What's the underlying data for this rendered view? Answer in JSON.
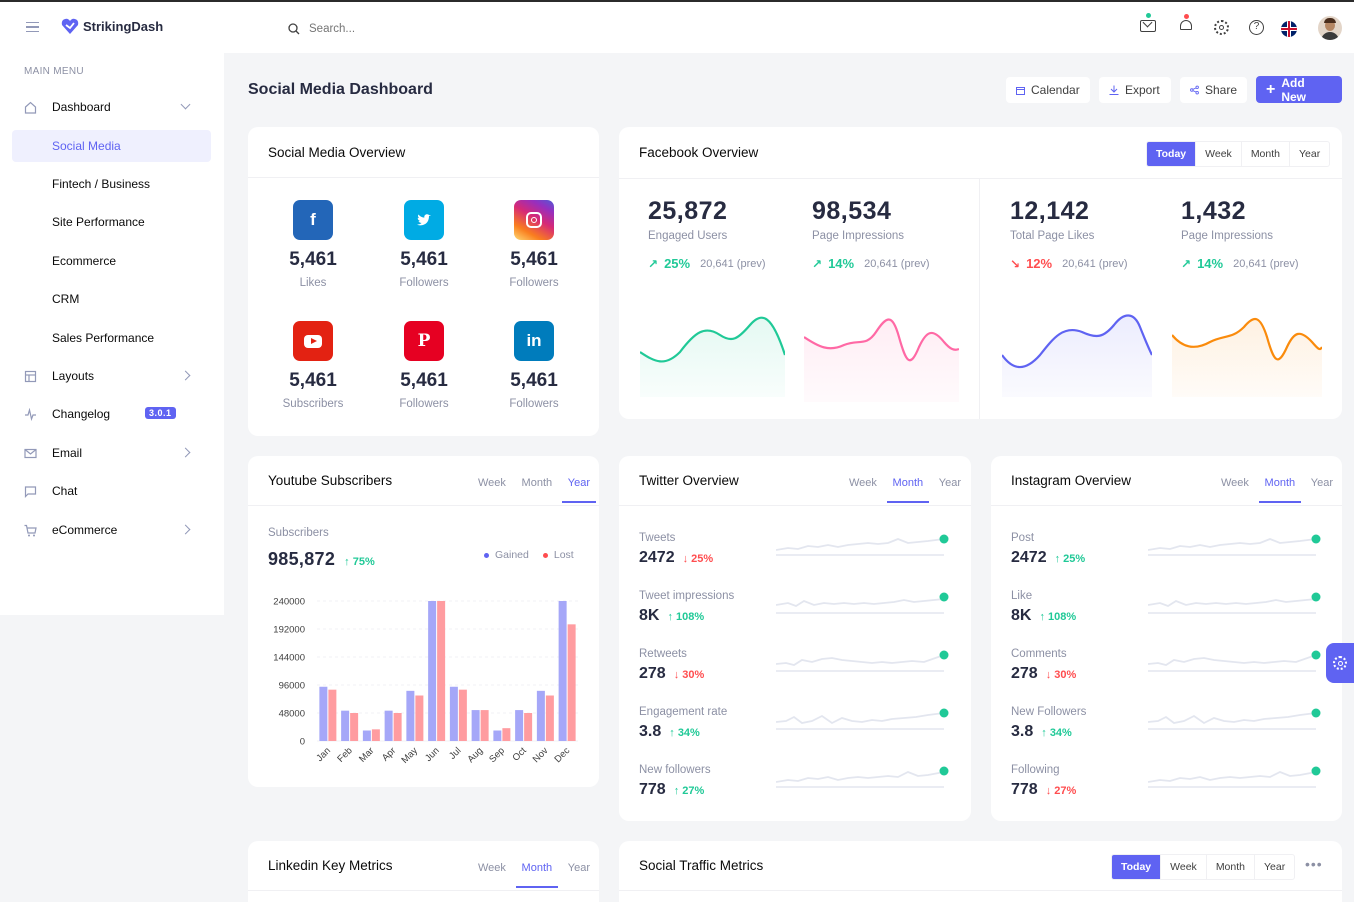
{
  "app": {
    "name": "StrikingDash"
  },
  "search": {
    "placeholder": "Search..."
  },
  "sidebar": {
    "section_title": "MAIN MENU",
    "items": [
      {
        "label": "Dashboard"
      },
      {
        "label": "Social Media"
      },
      {
        "label": "Fintech / Business"
      },
      {
        "label": "Site Performance"
      },
      {
        "label": "Ecommerce"
      },
      {
        "label": "CRM"
      },
      {
        "label": "Sales Performance"
      },
      {
        "label": "Layouts"
      },
      {
        "label": "Changelog",
        "badge": "3.0.1"
      },
      {
        "label": "Email"
      },
      {
        "label": "Chat"
      },
      {
        "label": "eCommerce"
      }
    ]
  },
  "page": {
    "title": "Social Media Dashboard",
    "buttons": {
      "calendar": "Calendar",
      "export": "Export",
      "share": "Share",
      "add_new": "Add New"
    }
  },
  "social_overview": {
    "title": "Social Media Overview",
    "items": [
      {
        "icon": "facebook-icon",
        "glyph": "f",
        "value": "5,461",
        "label": "Likes",
        "color": "#2366b8"
      },
      {
        "icon": "twitter-icon",
        "glyph": "🐦",
        "value": "5,461",
        "label": "Followers",
        "color": "#00abe4"
      },
      {
        "icon": "instagram-icon",
        "glyph": "◎",
        "value": "5,461",
        "label": "Followers",
        "color": "#c13584"
      },
      {
        "icon": "youtube-icon",
        "glyph": "▶",
        "value": "5,461",
        "label": "Subscribers",
        "color": "#e32212"
      },
      {
        "icon": "pinterest-icon",
        "glyph": "P",
        "value": "5,461",
        "label": "Followers",
        "color": "#e60022"
      },
      {
        "icon": "linkedin-icon",
        "glyph": "in",
        "value": "5,461",
        "label": "Followers",
        "color": "#007cbc"
      }
    ]
  },
  "facebook_overview": {
    "title": "Facebook Overview",
    "tabs": [
      "Today",
      "Week",
      "Month",
      "Year"
    ],
    "active_tab": "Today",
    "stats": [
      {
        "value": "25,872",
        "label": "Engaged Users",
        "change": "25%",
        "prev": "20,641 (prev)",
        "trend": "up",
        "color": "#20c997"
      },
      {
        "value": "98,534",
        "label": "Page Impressions",
        "change": "14%",
        "prev": "20,641 (prev)",
        "trend": "up",
        "color": "#ff69a5"
      },
      {
        "value": "12,142",
        "label": "Total Page Likes",
        "change": "12%",
        "prev": "20,641 (prev)",
        "trend": "down",
        "color": "#5f63f2"
      },
      {
        "value": "1,432",
        "label": "Page Impressions",
        "change": "14%",
        "prev": "20,641 (prev)",
        "trend": "up",
        "color": "#fa8b0c"
      }
    ]
  },
  "youtube": {
    "title": "Youtube Subscribers",
    "tabs": [
      "Week",
      "Month",
      "Year"
    ],
    "active_tab": "Year",
    "subscribers_label": "Subscribers",
    "subscribers_value": "985,872",
    "subscribers_change": "75%",
    "legend": {
      "gained": "Gained",
      "lost": "Lost"
    }
  },
  "chart_data": {
    "type": "bar",
    "categories": [
      "Jan",
      "Feb",
      "Mar",
      "Apr",
      "May",
      "Jun",
      "Jul",
      "Aug",
      "Sep",
      "Oct",
      "Nov",
      "Dec"
    ],
    "series": [
      {
        "name": "Gained",
        "values": [
          93000,
          52000,
          18000,
          52000,
          86000,
          240000,
          93000,
          53000,
          18000,
          53000,
          86000,
          240000
        ],
        "color": "#a5a7f8"
      },
      {
        "name": "Lost",
        "values": [
          88000,
          48000,
          20000,
          48000,
          78000,
          240000,
          88000,
          53000,
          22000,
          48000,
          78000,
          200000
        ],
        "color": "#ff9ca0"
      }
    ],
    "yticks": [
      "0",
      "48000",
      "96000",
      "144000",
      "192000",
      "240000"
    ],
    "ylim": [
      0,
      240000
    ],
    "grid": true,
    "legend_position": "top-right"
  },
  "twitter": {
    "title": "Twitter Overview",
    "tabs": [
      "Week",
      "Month",
      "Year"
    ],
    "active_tab": "Month",
    "metrics": [
      {
        "label": "Tweets",
        "value": "2472",
        "change": "25%",
        "trend": "down"
      },
      {
        "label": "Tweet impressions",
        "value": "8K",
        "change": "108%",
        "trend": "up"
      },
      {
        "label": "Retweets",
        "value": "278",
        "change": "30%",
        "trend": "down"
      },
      {
        "label": "Engagement rate",
        "value": "3.8",
        "change": "34%",
        "trend": "up"
      },
      {
        "label": "New followers",
        "value": "778",
        "change": "27%",
        "trend": "up"
      }
    ]
  },
  "instagram": {
    "title": "Instagram Overview",
    "tabs": [
      "Week",
      "Month",
      "Year"
    ],
    "active_tab": "Month",
    "metrics": [
      {
        "label": "Post",
        "value": "2472",
        "change": "25%",
        "trend": "up"
      },
      {
        "label": "Like",
        "value": "8K",
        "change": "108%",
        "trend": "up"
      },
      {
        "label": "Comments",
        "value": "278",
        "change": "30%",
        "trend": "down"
      },
      {
        "label": "New Followers",
        "value": "3.8",
        "change": "34%",
        "trend": "up"
      },
      {
        "label": "Following",
        "value": "778",
        "change": "27%",
        "trend": "down"
      }
    ]
  },
  "linkedin": {
    "title": "Linkedin Key Metrics",
    "tabs": [
      "Week",
      "Month",
      "Year"
    ],
    "active_tab": "Month"
  },
  "social_traffic": {
    "title": "Social Traffic Metrics",
    "tabs": [
      "Today",
      "Week",
      "Month",
      "Year"
    ],
    "active_tab": "Today"
  },
  "colors": {
    "primary": "#5f63f2",
    "success": "#20c997",
    "danger": "#ff4d4f"
  }
}
